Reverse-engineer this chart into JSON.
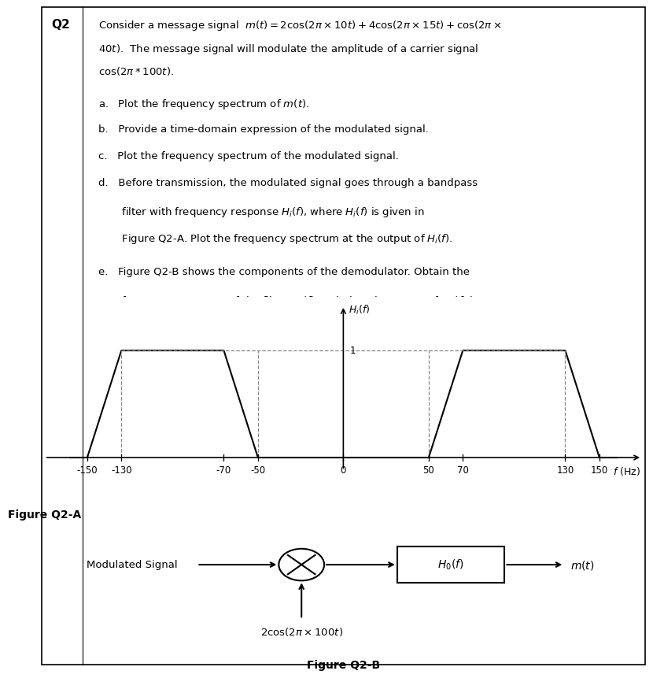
{
  "title_label": "Q2",
  "fig_a_label": "Figure Q2-A",
  "fig_b_label": "Figure Q2-B",
  "filter_x": [
    -160,
    -150,
    -130,
    -70,
    -50,
    50,
    70,
    130,
    150,
    160
  ],
  "filter_y": [
    0,
    0,
    1,
    1,
    0,
    0,
    1,
    1,
    0,
    0
  ],
  "filter_xticks": [
    -150,
    -130,
    -70,
    -50,
    0,
    50,
    70,
    130,
    150
  ],
  "filter_xlabel": "$f$ (Hz)",
  "filter_ylabel": "$H_i(f)$",
  "dashed_line_color": "#888888",
  "bg_color": "#ffffff",
  "border_color": "#000000",
  "modulated_signal_label": "Modulated Signal",
  "carrier_label": "$2\\cos(2\\pi \\times 100t)$",
  "filter_box_label": "$H_0(f)$",
  "output_label": "$m(t)$"
}
